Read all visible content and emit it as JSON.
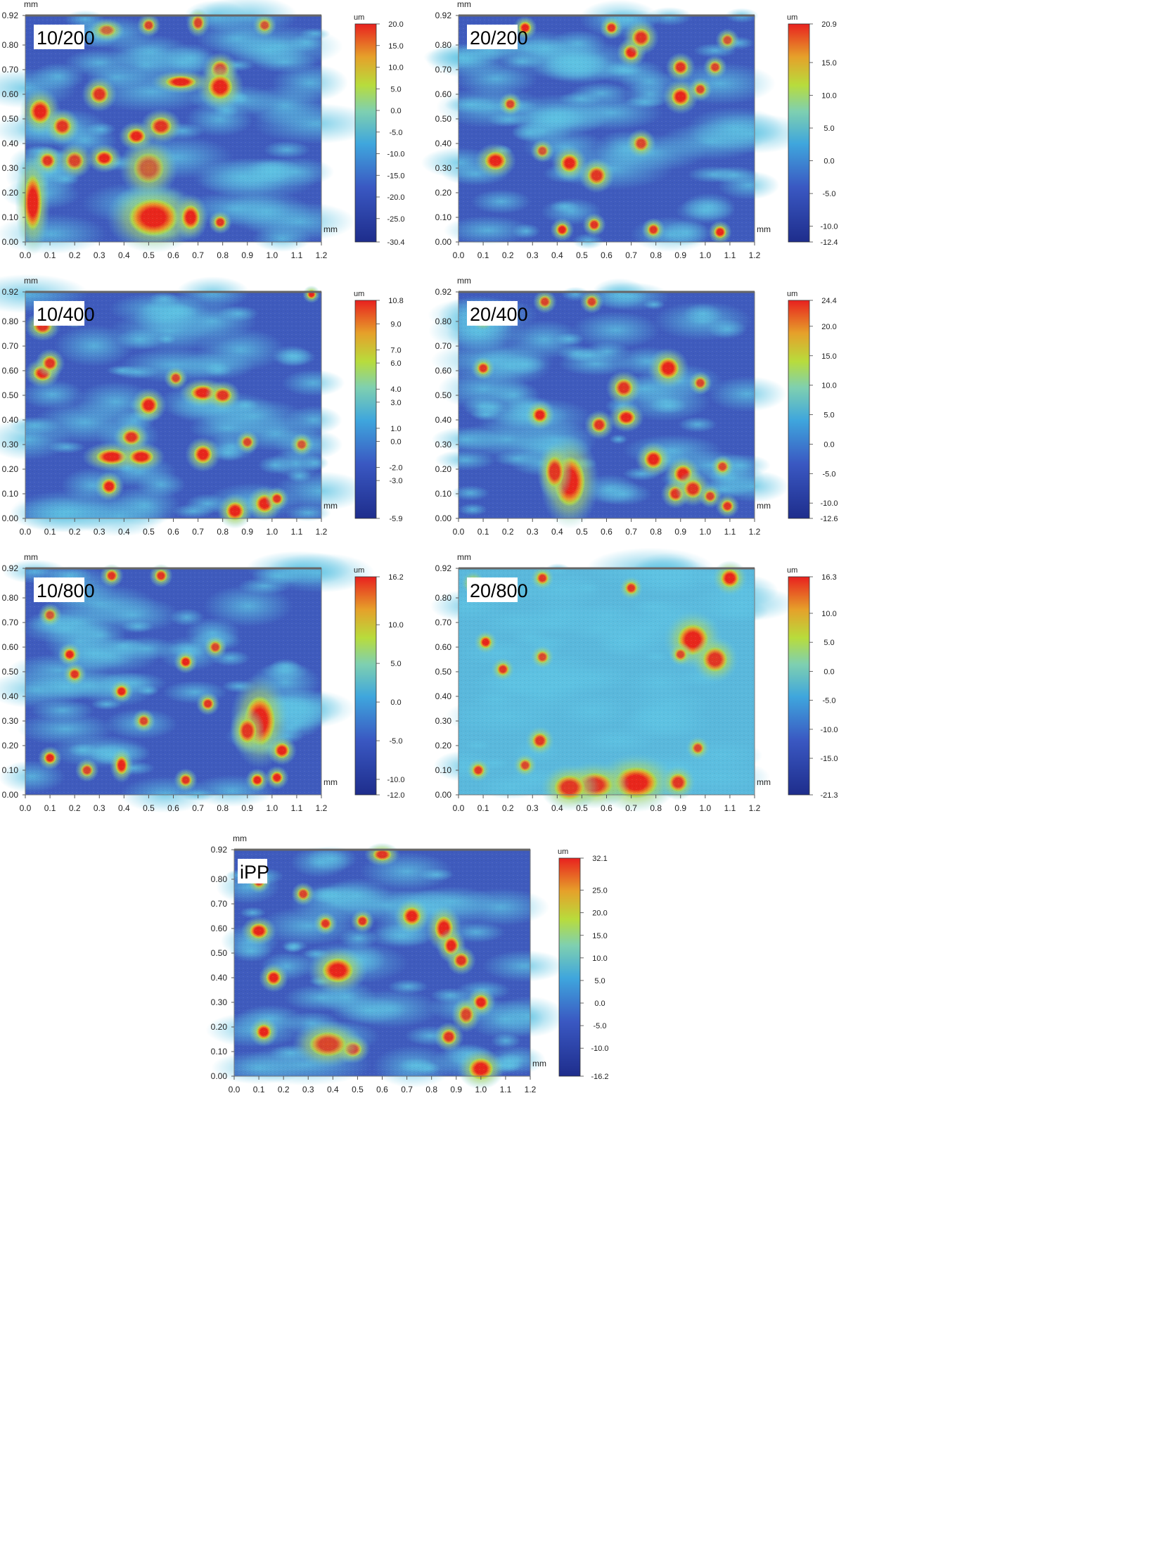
{
  "chart_data": [
    {
      "type": "heatmap",
      "label": "10/200",
      "x_unit": "mm",
      "y_unit": "mm",
      "xlim": [
        0,
        1.2
      ],
      "ylim": [
        0,
        0.92
      ],
      "x_ticks": [
        "0.0",
        "0.1",
        "0.2",
        "0.3",
        "0.4",
        "0.5",
        "0.6",
        "0.7",
        "0.8",
        "0.9",
        "1.0",
        "1.1",
        "1.2"
      ],
      "y_ticks": [
        "0.00",
        "0.10",
        "0.20",
        "0.30",
        "0.40",
        "0.50",
        "0.60",
        "0.70",
        "0.80",
        "0.92"
      ],
      "colorbar": {
        "unit": "um",
        "min": -30.4,
        "max": 20.0,
        "ticks": [
          "20.0",
          "15.0",
          "10.0",
          "5.0",
          "0.0",
          "-5.0",
          "-10.0",
          "-15.0",
          "-20.0",
          "-25.0",
          "-30.4"
        ]
      },
      "features": [
        [
          0.06,
          0.53,
          0.035,
          0.04,
          1
        ],
        [
          0.15,
          0.47,
          0.03,
          0.03,
          0.9
        ],
        [
          0.3,
          0.6,
          0.03,
          0.03,
          0.9
        ],
        [
          0.32,
          0.34,
          0.03,
          0.025,
          1
        ],
        [
          0.45,
          0.43,
          0.03,
          0.025,
          1
        ],
        [
          0.55,
          0.47,
          0.035,
          0.03,
          0.9
        ],
        [
          0.63,
          0.65,
          0.05,
          0.02,
          1
        ],
        [
          0.79,
          0.7,
          0.03,
          0.03,
          0.9
        ],
        [
          0.79,
          0.63,
          0.04,
          0.04,
          1
        ],
        [
          0.09,
          0.33,
          0.025,
          0.025,
          0.9
        ],
        [
          0.2,
          0.33,
          0.03,
          0.03,
          0.8
        ],
        [
          0.52,
          0.1,
          0.08,
          0.06,
          1
        ],
        [
          0.67,
          0.1,
          0.03,
          0.04,
          1
        ],
        [
          0.79,
          0.08,
          0.02,
          0.02,
          0.9
        ],
        [
          0.03,
          0.16,
          0.03,
          0.09,
          1
        ],
        [
          0.7,
          0.89,
          0.02,
          0.025,
          0.8
        ],
        [
          0.5,
          0.88,
          0.02,
          0.02,
          0.8
        ],
        [
          0.97,
          0.88,
          0.02,
          0.02,
          0.7
        ],
        [
          0.5,
          0.3,
          0.05,
          0.05,
          0.6
        ],
        [
          0.33,
          0.86,
          0.03,
          0.02,
          0.6
        ]
      ]
    },
    {
      "type": "heatmap",
      "label": "20/200",
      "x_unit": "mm",
      "y_unit": "mm",
      "xlim": [
        0,
        1.2
      ],
      "ylim": [
        0,
        0.92
      ],
      "x_ticks": [
        "0.0",
        "0.1",
        "0.2",
        "0.3",
        "0.4",
        "0.5",
        "0.6",
        "0.7",
        "0.8",
        "0.9",
        "1.0",
        "1.1",
        "1.2"
      ],
      "y_ticks": [
        "0.00",
        "0.10",
        "0.20",
        "0.30",
        "0.40",
        "0.50",
        "0.60",
        "0.70",
        "0.80",
        "0.92"
      ],
      "colorbar": {
        "unit": "um",
        "min": -12.4,
        "max": 20.9,
        "ticks": [
          "20.9",
          "15.0",
          "10.0",
          "5.0",
          "0.0",
          "-5.0",
          "-10.0",
          "-12.4"
        ]
      },
      "features": [
        [
          0.15,
          0.33,
          0.035,
          0.03,
          1
        ],
        [
          0.27,
          0.87,
          0.02,
          0.02,
          1
        ],
        [
          0.45,
          0.32,
          0.03,
          0.03,
          1
        ],
        [
          0.56,
          0.27,
          0.03,
          0.03,
          0.9
        ],
        [
          0.62,
          0.87,
          0.02,
          0.02,
          0.9
        ],
        [
          0.7,
          0.77,
          0.025,
          0.025,
          1
        ],
        [
          0.74,
          0.83,
          0.03,
          0.03,
          0.9
        ],
        [
          0.9,
          0.59,
          0.03,
          0.03,
          1
        ],
        [
          0.9,
          0.71,
          0.025,
          0.025,
          0.9
        ],
        [
          1.04,
          0.71,
          0.02,
          0.02,
          0.8
        ],
        [
          0.42,
          0.05,
          0.02,
          0.02,
          1
        ],
        [
          0.55,
          0.07,
          0.02,
          0.02,
          0.9
        ],
        [
          0.79,
          0.05,
          0.02,
          0.02,
          0.9
        ],
        [
          1.06,
          0.04,
          0.02,
          0.02,
          1
        ],
        [
          0.98,
          0.62,
          0.02,
          0.02,
          0.8
        ],
        [
          0.74,
          0.4,
          0.025,
          0.025,
          0.8
        ],
        [
          0.21,
          0.56,
          0.02,
          0.02,
          0.8
        ],
        [
          0.34,
          0.37,
          0.02,
          0.02,
          0.7
        ],
        [
          1.09,
          0.82,
          0.02,
          0.02,
          0.7
        ]
      ]
    },
    {
      "type": "heatmap",
      "label": "10/400",
      "x_unit": "mm",
      "y_unit": "mm",
      "xlim": [
        0,
        1.2
      ],
      "ylim": [
        0,
        0.92
      ],
      "x_ticks": [
        "0.0",
        "0.1",
        "0.2",
        "0.3",
        "0.4",
        "0.5",
        "0.6",
        "0.7",
        "0.8",
        "0.9",
        "1.0",
        "1.1",
        "1.2"
      ],
      "y_ticks": [
        "0.00",
        "0.10",
        "0.20",
        "0.30",
        "0.40",
        "0.50",
        "0.60",
        "0.70",
        "0.80",
        "0.92"
      ],
      "colorbar": {
        "unit": "um",
        "min": -5.9,
        "max": 10.8,
        "ticks": [
          "10.8",
          "9.0",
          "7.0",
          "6.0",
          "4.0",
          "3.0",
          "1.0",
          "0.0",
          "-2.0",
          "-3.0",
          "-5.9"
        ]
      },
      "features": [
        [
          0.07,
          0.59,
          0.03,
          0.025,
          1
        ],
        [
          0.1,
          0.63,
          0.025,
          0.025,
          0.9
        ],
        [
          0.2,
          0.82,
          0.02,
          0.02,
          1
        ],
        [
          0.07,
          0.78,
          0.03,
          0.025,
          0.9
        ],
        [
          0.35,
          0.25,
          0.05,
          0.025,
          1
        ],
        [
          0.47,
          0.25,
          0.04,
          0.025,
          1
        ],
        [
          0.72,
          0.26,
          0.03,
          0.03,
          1
        ],
        [
          0.5,
          0.46,
          0.03,
          0.03,
          1
        ],
        [
          0.72,
          0.51,
          0.04,
          0.025,
          1
        ],
        [
          0.8,
          0.5,
          0.03,
          0.025,
          0.9
        ],
        [
          0.43,
          0.33,
          0.03,
          0.025,
          0.9
        ],
        [
          0.34,
          0.13,
          0.025,
          0.025,
          1
        ],
        [
          0.85,
          0.03,
          0.03,
          0.03,
          1
        ],
        [
          0.97,
          0.06,
          0.03,
          0.03,
          1
        ],
        [
          1.02,
          0.08,
          0.02,
          0.02,
          0.9
        ],
        [
          1.16,
          0.91,
          0.015,
          0.015,
          1
        ],
        [
          0.9,
          0.31,
          0.02,
          0.02,
          0.8
        ],
        [
          0.61,
          0.57,
          0.02,
          0.02,
          0.8
        ],
        [
          1.12,
          0.3,
          0.02,
          0.02,
          0.7
        ]
      ]
    },
    {
      "type": "heatmap",
      "label": "20/400",
      "x_unit": "mm",
      "y_unit": "mm",
      "xlim": [
        0,
        1.2
      ],
      "ylim": [
        0,
        0.92
      ],
      "x_ticks": [
        "0.0",
        "0.1",
        "0.2",
        "0.3",
        "0.4",
        "0.5",
        "0.6",
        "0.7",
        "0.8",
        "0.9",
        "1.0",
        "1.1",
        "1.2"
      ],
      "y_ticks": [
        "0.00",
        "0.10",
        "0.20",
        "0.30",
        "0.40",
        "0.50",
        "0.60",
        "0.70",
        "0.80",
        "0.92"
      ],
      "colorbar": {
        "unit": "um",
        "min": -12.6,
        "max": 24.4,
        "ticks": [
          "24.4",
          "20.0",
          "15.0",
          "10.0",
          "5.0",
          "0.0",
          "-5.0",
          "-10.0",
          "-12.6"
        ]
      },
      "features": [
        [
          0.85,
          0.61,
          0.035,
          0.035,
          1
        ],
        [
          0.68,
          0.41,
          0.03,
          0.025,
          1
        ],
        [
          0.45,
          0.15,
          0.05,
          0.08,
          1
        ],
        [
          0.39,
          0.19,
          0.03,
          0.05,
          0.9
        ],
        [
          0.79,
          0.24,
          0.03,
          0.03,
          1
        ],
        [
          0.91,
          0.18,
          0.03,
          0.03,
          1
        ],
        [
          0.88,
          0.1,
          0.025,
          0.025,
          0.9
        ],
        [
          0.95,
          0.12,
          0.03,
          0.03,
          0.9
        ],
        [
          0.67,
          0.53,
          0.03,
          0.03,
          0.9
        ],
        [
          0.33,
          0.42,
          0.025,
          0.025,
          1
        ],
        [
          0.57,
          0.38,
          0.025,
          0.025,
          0.9
        ],
        [
          0.1,
          0.61,
          0.02,
          0.02,
          0.9
        ],
        [
          0.35,
          0.88,
          0.02,
          0.02,
          0.8
        ],
        [
          0.54,
          0.88,
          0.02,
          0.02,
          0.8
        ],
        [
          0.1,
          0.81,
          0.02,
          0.02,
          0.8
        ],
        [
          1.09,
          0.05,
          0.02,
          0.02,
          0.9
        ],
        [
          1.07,
          0.21,
          0.02,
          0.02,
          0.8
        ],
        [
          0.98,
          0.55,
          0.02,
          0.02,
          0.8
        ],
        [
          1.02,
          0.09,
          0.02,
          0.02,
          0.8
        ]
      ]
    },
    {
      "type": "heatmap",
      "label": "10/800",
      "x_unit": "mm",
      "y_unit": "mm",
      "xlim": [
        0,
        1.2
      ],
      "ylim": [
        0,
        0.92
      ],
      "x_ticks": [
        "0.0",
        "0.1",
        "0.2",
        "0.3",
        "0.4",
        "0.5",
        "0.6",
        "0.7",
        "0.8",
        "0.9",
        "1.0",
        "1.1",
        "1.2"
      ],
      "y_ticks": [
        "0.00",
        "0.10",
        "0.20",
        "0.30",
        "0.40",
        "0.50",
        "0.60",
        "0.70",
        "0.80",
        "0.92"
      ],
      "colorbar": {
        "unit": "um",
        "min": -12.0,
        "max": 16.2,
        "ticks": [
          "16.2",
          "10.0",
          "5.0",
          "0.0",
          "-5.0",
          "-10.0",
          "-12.0"
        ]
      },
      "features": [
        [
          0.95,
          0.3,
          0.05,
          0.08,
          1
        ],
        [
          0.9,
          0.26,
          0.03,
          0.04,
          0.9
        ],
        [
          1.04,
          0.18,
          0.025,
          0.025,
          1
        ],
        [
          0.39,
          0.12,
          0.02,
          0.03,
          1
        ],
        [
          0.1,
          0.15,
          0.02,
          0.02,
          1
        ],
        [
          0.65,
          0.54,
          0.02,
          0.02,
          1
        ],
        [
          0.39,
          0.42,
          0.02,
          0.02,
          1
        ],
        [
          0.18,
          0.57,
          0.02,
          0.02,
          1
        ],
        [
          0.2,
          0.49,
          0.02,
          0.02,
          0.9
        ],
        [
          0.74,
          0.37,
          0.02,
          0.02,
          0.9
        ],
        [
          0.35,
          0.89,
          0.02,
          0.02,
          0.9
        ],
        [
          0.55,
          0.89,
          0.02,
          0.02,
          0.9
        ],
        [
          0.94,
          0.06,
          0.02,
          0.02,
          1
        ],
        [
          1.02,
          0.07,
          0.02,
          0.02,
          1
        ],
        [
          0.65,
          0.06,
          0.02,
          0.02,
          0.9
        ],
        [
          0.25,
          0.1,
          0.02,
          0.02,
          0.8
        ],
        [
          0.77,
          0.6,
          0.02,
          0.02,
          0.8
        ],
        [
          0.48,
          0.3,
          0.02,
          0.02,
          0.8
        ],
        [
          0.1,
          0.73,
          0.02,
          0.02,
          0.7
        ]
      ]
    },
    {
      "type": "heatmap",
      "label": "20/800",
      "x_unit": "mm",
      "y_unit": "mm",
      "xlim": [
        0,
        1.2
      ],
      "ylim": [
        0,
        0.92
      ],
      "x_ticks": [
        "0.0",
        "0.1",
        "0.2",
        "0.3",
        "0.4",
        "0.5",
        "0.6",
        "0.7",
        "0.8",
        "0.9",
        "1.0",
        "1.1",
        "1.2"
      ],
      "y_ticks": [
        "0.00",
        "0.10",
        "0.20",
        "0.30",
        "0.40",
        "0.50",
        "0.60",
        "0.70",
        "0.80",
        "0.92"
      ],
      "colorbar": {
        "unit": "um",
        "min": -21.3,
        "max": 16.3,
        "ticks": [
          "16.3",
          "10.0",
          "5.0",
          "0.0",
          "-5.0",
          "-10.0",
          "-15.0",
          "-21.3"
        ]
      },
      "features": [
        [
          0.95,
          0.63,
          0.05,
          0.05,
          1
        ],
        [
          1.04,
          0.55,
          0.04,
          0.04,
          0.9
        ],
        [
          0.72,
          0.05,
          0.07,
          0.05,
          1
        ],
        [
          0.55,
          0.04,
          0.06,
          0.04,
          0.9
        ],
        [
          0.45,
          0.03,
          0.05,
          0.04,
          0.9
        ],
        [
          0.89,
          0.05,
          0.03,
          0.03,
          0.9
        ],
        [
          0.06,
          0.86,
          0.02,
          0.02,
          1
        ],
        [
          0.11,
          0.62,
          0.02,
          0.02,
          1
        ],
        [
          0.18,
          0.51,
          0.02,
          0.02,
          0.9
        ],
        [
          0.34,
          0.88,
          0.02,
          0.02,
          0.9
        ],
        [
          0.7,
          0.84,
          0.02,
          0.02,
          0.9
        ],
        [
          1.1,
          0.88,
          0.03,
          0.03,
          1
        ],
        [
          0.34,
          0.56,
          0.02,
          0.02,
          0.8
        ],
        [
          0.97,
          0.19,
          0.02,
          0.02,
          0.8
        ],
        [
          0.33,
          0.22,
          0.025,
          0.025,
          0.9
        ],
        [
          0.27,
          0.12,
          0.02,
          0.02,
          0.8
        ],
        [
          0.08,
          0.1,
          0.02,
          0.02,
          0.9
        ],
        [
          0.9,
          0.57,
          0.02,
          0.02,
          0.8
        ]
      ]
    },
    {
      "type": "heatmap",
      "label": "iPP",
      "x_unit": "mm",
      "y_unit": "mm",
      "xlim": [
        0,
        1.2
      ],
      "ylim": [
        0,
        0.92
      ],
      "x_ticks": [
        "0.0",
        "0.1",
        "0.2",
        "0.3",
        "0.4",
        "0.5",
        "0.6",
        "0.7",
        "0.8",
        "0.9",
        "1.0",
        "1.1",
        "1.2"
      ],
      "y_ticks": [
        "0.00",
        "0.10",
        "0.20",
        "0.30",
        "0.40",
        "0.50",
        "0.60",
        "0.70",
        "0.80",
        "0.92"
      ],
      "colorbar": {
        "unit": "um",
        "min": -16.2,
        "max": 32.1,
        "ticks": [
          "32.1",
          "25.0",
          "20.0",
          "15.0",
          "10.0",
          "5.0",
          "0.0",
          "-5.0",
          "-10.0",
          "-16.2"
        ]
      },
      "features": [
        [
          0.42,
          0.43,
          0.05,
          0.04,
          1
        ],
        [
          0.85,
          0.6,
          0.03,
          0.04,
          1
        ],
        [
          0.88,
          0.53,
          0.025,
          0.03,
          1
        ],
        [
          0.72,
          0.65,
          0.03,
          0.03,
          1
        ],
        [
          0.1,
          0.59,
          0.03,
          0.025,
          1
        ],
        [
          0.16,
          0.4,
          0.025,
          0.025,
          1
        ],
        [
          0.12,
          0.18,
          0.025,
          0.025,
          1
        ],
        [
          1.0,
          0.03,
          0.04,
          0.035,
          1
        ],
        [
          0.48,
          0.11,
          0.03,
          0.025,
          1
        ],
        [
          0.38,
          0.13,
          0.06,
          0.04,
          0.8
        ],
        [
          1.0,
          0.3,
          0.025,
          0.025,
          1
        ],
        [
          0.92,
          0.47,
          0.025,
          0.025,
          0.9
        ],
        [
          0.52,
          0.63,
          0.02,
          0.02,
          0.9
        ],
        [
          0.37,
          0.62,
          0.02,
          0.02,
          0.9
        ],
        [
          0.87,
          0.16,
          0.025,
          0.025,
          0.9
        ],
        [
          0.6,
          0.9,
          0.03,
          0.02,
          0.9
        ],
        [
          0.1,
          0.79,
          0.02,
          0.02,
          0.8
        ],
        [
          0.28,
          0.74,
          0.02,
          0.02,
          0.8
        ],
        [
          0.94,
          0.25,
          0.025,
          0.03,
          0.8
        ]
      ]
    }
  ]
}
